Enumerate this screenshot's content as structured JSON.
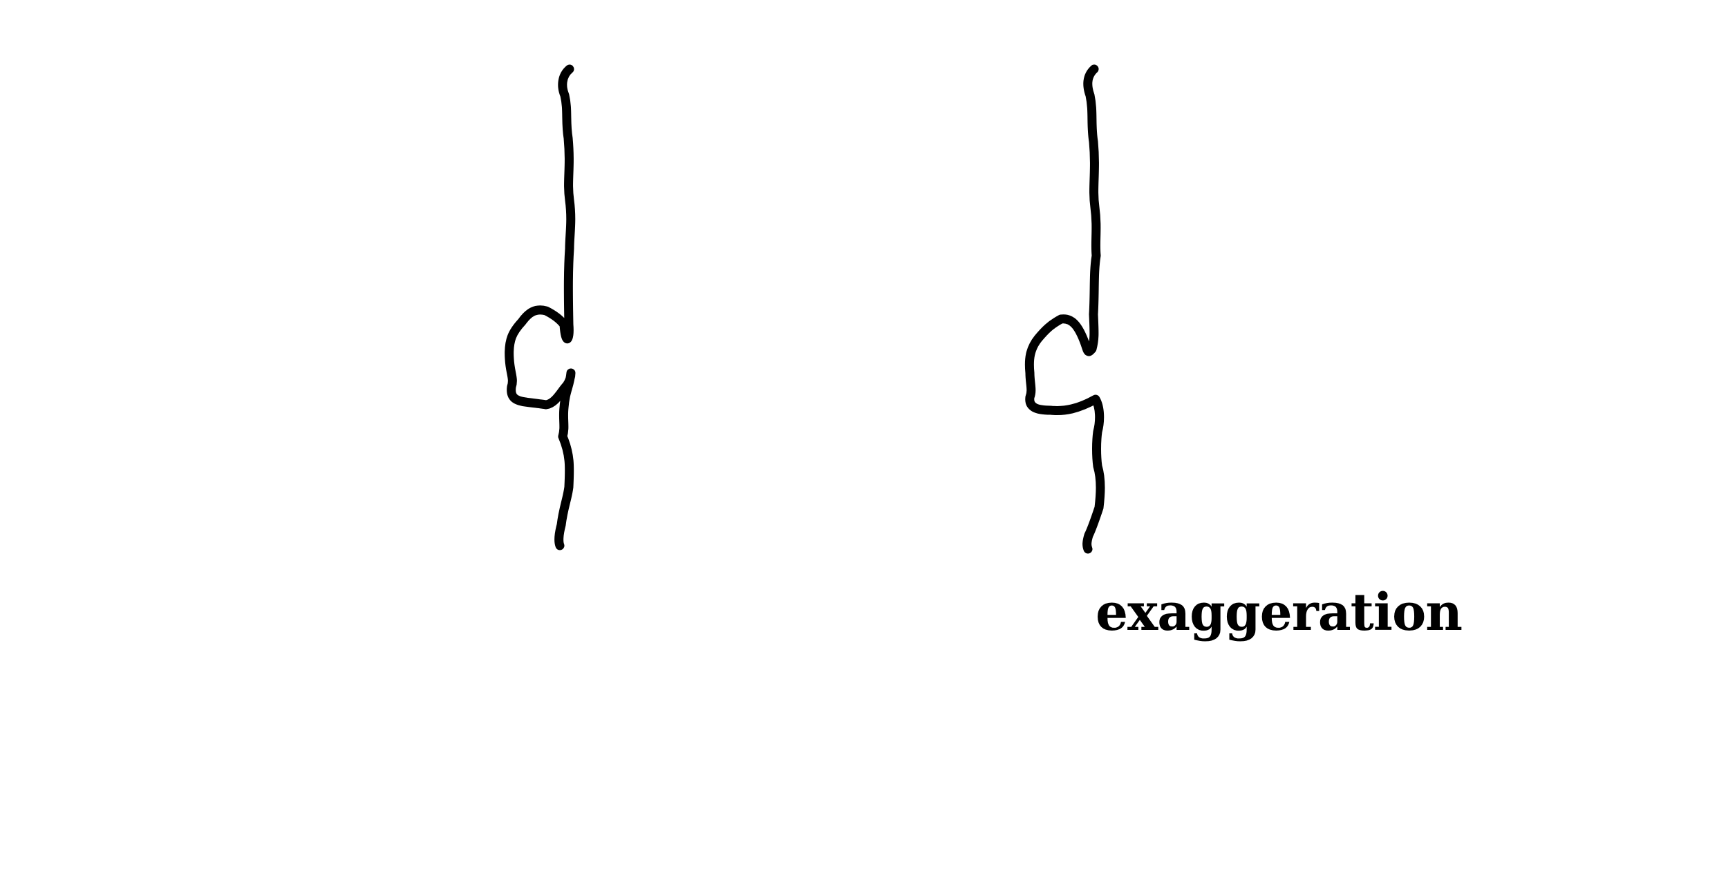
{
  "caption": "exaggeration",
  "ink_color": "#000000",
  "background_color": "#ffffff",
  "figures": [
    {
      "name": "hooked-stroke-original"
    },
    {
      "name": "hooked-stroke-exaggerated"
    }
  ]
}
